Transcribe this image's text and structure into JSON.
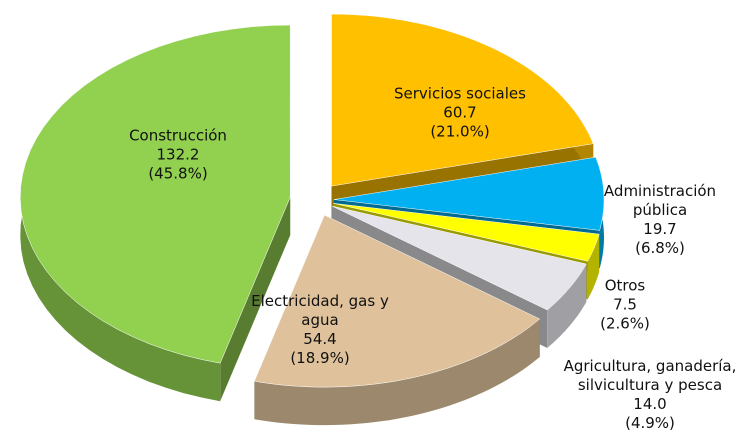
{
  "chart_data": {
    "type": "pie3d",
    "categories": [
      "Servicios sociales",
      "Administración pública",
      "Otros",
      "Agricultura, ganadería, silvicultura  y pesca",
      "Electricidad, gas y agua",
      "Construcción"
    ],
    "values": [
      60.7,
      19.7,
      7.5,
      14.0,
      54.4,
      132.2
    ],
    "value_labels": [
      "60.7",
      "19.7",
      "7.5",
      "14.0",
      "54.4",
      "132.2"
    ],
    "percent_labels": [
      "(21.0%)",
      "(6.8%)",
      "(2.6%)",
      "(4.9%)",
      "(18.9%)",
      "(45.8%)"
    ],
    "colors": [
      "#ffc000",
      "#00b0f0",
      "#ffff00",
      "#e4e4ea",
      "#dfc29b",
      "#92d050"
    ]
  }
}
